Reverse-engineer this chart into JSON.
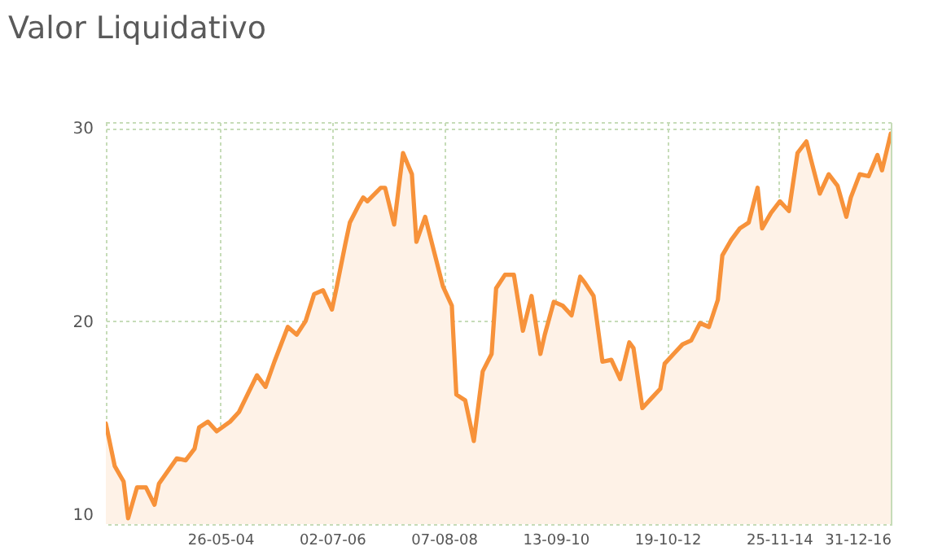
{
  "chart_data": {
    "type": "area",
    "title": "Valor Liquidativo",
    "x": [
      "2002-04",
      "2002-06",
      "2002-08",
      "2002-09",
      "2002-11",
      "2003-01",
      "2003-03",
      "2003-04",
      "2003-08",
      "2003-10",
      "2003-12",
      "2004-01",
      "2004-03",
      "2004-05",
      "2004-08",
      "2004-10",
      "2005-02",
      "2005-04",
      "2005-06",
      "2005-09",
      "2005-11",
      "2006-01",
      "2006-03",
      "2006-05",
      "2006-07",
      "2006-08",
      "2006-10",
      "2006-11",
      "2007-01",
      "2007-02",
      "2007-03",
      "2007-06",
      "2007-07",
      "2007-09",
      "2007-11",
      "2008-01",
      "2008-02",
      "2008-04",
      "2008-06",
      "2008-08",
      "2008-10",
      "2008-11",
      "2009-01",
      "2009-03",
      "2009-05",
      "2009-07",
      "2009-08",
      "2009-10",
      "2009-12",
      "2010-02",
      "2010-04",
      "2010-06",
      "2010-07",
      "2010-09",
      "2010-11",
      "2011-01",
      "2011-03",
      "2011-04",
      "2011-06",
      "2011-08",
      "2011-10",
      "2011-12",
      "2012-02",
      "2012-03",
      "2012-05",
      "2012-07",
      "2012-09",
      "2012-10",
      "2012-12",
      "2013-02",
      "2013-04",
      "2013-06",
      "2013-08",
      "2013-10",
      "2013-11",
      "2014-01",
      "2014-03",
      "2014-05",
      "2014-07",
      "2014-08",
      "2014-10",
      "2014-12",
      "2015-02",
      "2015-04",
      "2015-06",
      "2015-07",
      "2015-09",
      "2015-11",
      "2016-01",
      "2016-03",
      "2016-04",
      "2016-06",
      "2016-08",
      "2016-10",
      "2016-11",
      "2016-12-31"
    ],
    "series": [
      {
        "color": "#f7923a",
        "values": [
          14.7,
          12.5,
          11.7,
          9.8,
          11.4,
          11.4,
          10.5,
          11.6,
          12.9,
          12.8,
          13.4,
          14.5,
          14.8,
          14.3,
          14.8,
          15.3,
          17.2,
          16.6,
          17.9,
          19.7,
          19.3,
          20.0,
          21.4,
          21.6,
          20.6,
          21.7,
          24.0,
          25.1,
          26.0,
          26.4,
          26.2,
          26.9,
          26.9,
          25.0,
          28.7,
          27.6,
          24.1,
          25.4,
          23.6,
          21.8,
          20.8,
          16.2,
          15.9,
          13.8,
          17.4,
          18.3,
          21.7,
          22.4,
          22.4,
          19.5,
          21.3,
          18.3,
          19.3,
          21.0,
          20.8,
          20.3,
          22.3,
          22.0,
          21.3,
          17.9,
          18.0,
          17.0,
          18.9,
          18.6,
          15.5,
          16.0,
          16.5,
          17.8,
          18.3,
          18.8,
          19.0,
          19.9,
          19.7,
          21.1,
          23.4,
          24.2,
          24.8,
          25.1,
          26.9,
          24.8,
          25.6,
          26.2,
          25.7,
          28.7,
          29.3,
          28.4,
          26.6,
          27.6,
          27.0,
          25.4,
          26.4,
          27.6,
          27.5,
          28.6,
          27.8,
          29.7
        ]
      }
    ],
    "xlim": [
      "2002-04-01",
      "2016-12-31"
    ],
    "xticks": [
      {
        "value": "2004-05-26",
        "label": "26-05-04"
      },
      {
        "value": "2006-07-02",
        "label": "02-07-06"
      },
      {
        "value": "2008-08-07",
        "label": "07-08-08"
      },
      {
        "value": "2010-09-13",
        "label": "13-09-10"
      },
      {
        "value": "2012-10-19",
        "label": "19-10-12"
      },
      {
        "value": "2014-11-25",
        "label": "25-11-14"
      },
      {
        "value": "2016-12-31",
        "label": "31-12-16"
      }
    ],
    "ylim": [
      9.5,
      30.3
    ],
    "yticks": [
      10,
      20,
      30
    ],
    "grid": true
  }
}
